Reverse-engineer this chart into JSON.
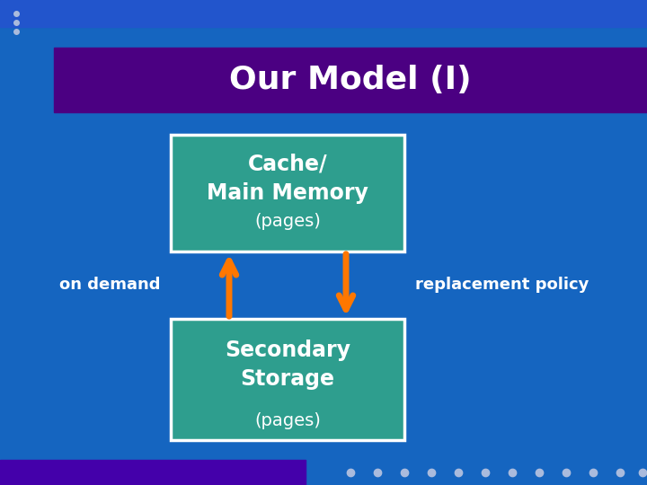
{
  "bg_color": "#1565C0",
  "header_bg_color": "#4B0082",
  "header_text": "Our Model (I)",
  "header_text_color": "#FFFFFF",
  "box_color": "#2E9E8E",
  "box_border_color": "#FFFFFF",
  "box1_line1": "Cache/",
  "box1_line2": "Main Memory",
  "box1_line3": "(pages)",
  "box2_line1": "Secondary",
  "box2_line2": "Storage",
  "box2_line3": "(pages)",
  "arrow_color": "#FF7700",
  "label_left": "on demand",
  "label_right": "replacement policy",
  "label_color": "#FFFFFF",
  "dot_color": "#AABBDD",
  "top_strip_color": "#2255CC",
  "bottom_purple_color": "#4400AA",
  "bottom_bar_color": "#1555BB"
}
